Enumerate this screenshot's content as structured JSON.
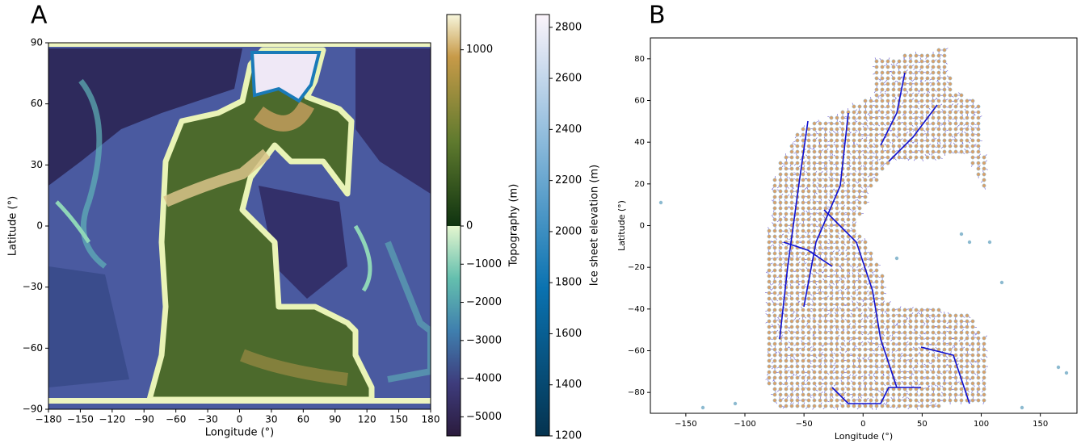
{
  "chart_data": [
    {
      "type": "heatmap",
      "panel": "A",
      "xlabel": "Longitude (°)",
      "ylabel": "Latitude (°)",
      "xlim": [
        -180,
        180
      ],
      "xticks": [
        {
          "value": -180,
          "label": "−180"
        },
        {
          "value": -150,
          "label": "−150"
        },
        {
          "value": -120,
          "label": "−120"
        },
        {
          "value": -90,
          "label": "−90"
        },
        {
          "value": -60,
          "label": "−60"
        },
        {
          "value": -30,
          "label": "−30"
        },
        0,
        30,
        60,
        90,
        120,
        150,
        180
      ],
      "ylim": [
        -90,
        90
      ],
      "yticks": [
        {
          "value": -90,
          "label": "−90"
        },
        {
          "value": -60,
          "label": "−60"
        },
        {
          "value": -30,
          "label": "−30"
        },
        0,
        30,
        60,
        90
      ],
      "colorbars": [
        {
          "label": "Topography (m)",
          "lim": [
            -5500,
            1200
          ],
          "ticks": [
            {
              "value": -5000,
              "label": "−5000"
            },
            {
              "value": -4000,
              "label": "−4000"
            },
            {
              "value": -3000,
              "label": "−3000"
            },
            {
              "value": -2000,
              "label": "−2000"
            },
            {
              "value": -1000,
              "label": "−1000"
            },
            0,
            1000
          ]
        },
        {
          "label": "Ice sheet elevation (m)",
          "lim": [
            1200,
            2850
          ],
          "ticks": [
            1200,
            1400,
            1600,
            1800,
            2000,
            2200,
            2400,
            2600,
            2800
          ]
        }
      ]
    },
    {
      "type": "network",
      "panel": "B",
      "xlabel": "Longitude (°)",
      "ylabel": "Latitude (°)",
      "xlim": [
        -180,
        181
      ],
      "xticks": [
        {
          "value": -150,
          "label": "−150"
        },
        {
          "value": -100,
          "label": "−100"
        },
        {
          "value": -50,
          "label": "−50"
        },
        0,
        50,
        100,
        150
      ],
      "ylim": [
        -90,
        90
      ],
      "yticks": [
        {
          "value": -80,
          "label": "−80"
        },
        {
          "value": -60,
          "label": "−60"
        },
        {
          "value": -40,
          "label": "−40"
        },
        {
          "value": -20,
          "label": "−20"
        },
        0,
        20,
        40,
        60,
        80
      ]
    }
  ]
}
